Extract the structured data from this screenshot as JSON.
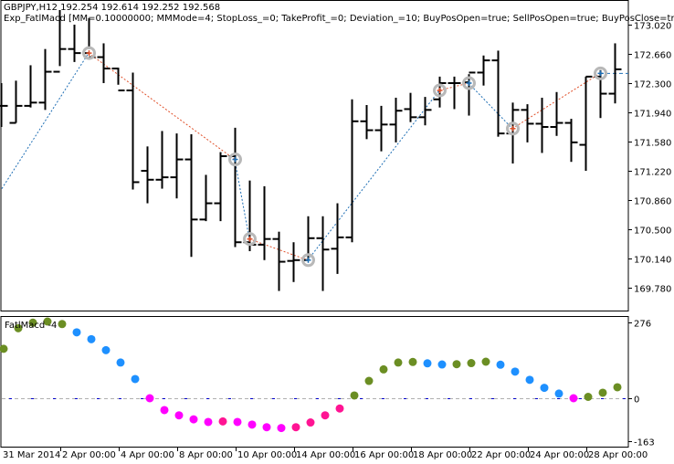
{
  "header": {
    "symbol_line": "GBPJPY,H12  192.254 192.614 192.252 192.568",
    "expert_line": "Exp_FatlMacd [MM=0.10000000; MMMode=4; StopLoss_=0; TakeProfit_=0; Deviation_=10; BuyPosOpen=true; SellPosOpen=true; BuyPosClose=true; SellPosCl"
  },
  "indicator": {
    "label": "FatlMacd -4"
  },
  "colors": {
    "bar": "#000000",
    "buy_line": "#1f6fb5",
    "sell_line": "#e0502a",
    "up_rising": "#6b8e23",
    "up_falling": "#1e90ff",
    "down_falling": "#ff00ff",
    "down_rising": "#ff1493",
    "zero_line": "#b0b0b0",
    "signal_marker": "#b8b8b8"
  },
  "price_axis": {
    "ticks": [
      "173.020",
      "172.660",
      "172.300",
      "171.940",
      "171.580",
      "171.220",
      "170.860",
      "170.500",
      "170.140",
      "169.780"
    ]
  },
  "indicator_axis": {
    "ticks": [
      "276",
      "0",
      "-163"
    ]
  },
  "time_axis": {
    "ticks": [
      "31 Mar 2014",
      "2 Apr 00:00",
      "4 Apr 00:00",
      "8 Apr 00:00",
      "10 Apr 00:00",
      "14 Apr 00:00",
      "16 Apr 00:00",
      "18 Apr 00:00",
      "22 Apr 00:00",
      "24 Apr 00:00",
      "28 Apr 00:00"
    ]
  },
  "chart_data": [
    {
      "type": "ohlc",
      "title": "GBPJPY,H12",
      "ylim": [
        169.6,
        173.1
      ],
      "yticks": [
        173.02,
        172.66,
        172.3,
        171.94,
        171.58,
        171.22,
        170.86,
        170.5,
        170.14,
        169.78
      ],
      "bars": [
        {
          "o": 172.02,
          "h": 172.3,
          "l": 171.76,
          "c": 172.02
        },
        {
          "o": 171.81,
          "h": 172.33,
          "l": 171.81,
          "c": 172.02
        },
        {
          "o": 172.02,
          "h": 172.52,
          "l": 172.0,
          "c": 172.06
        },
        {
          "o": 172.06,
          "h": 172.72,
          "l": 171.97,
          "c": 172.44
        },
        {
          "o": 172.44,
          "h": 173.2,
          "l": 172.51,
          "c": 172.72
        },
        {
          "o": 172.72,
          "h": 173.02,
          "l": 172.56,
          "c": 172.67
        },
        {
          "o": 172.67,
          "h": 173.1,
          "l": 172.72,
          "c": 172.62
        },
        {
          "o": 172.62,
          "h": 172.79,
          "l": 172.3,
          "c": 172.48
        },
        {
          "o": 172.48,
          "h": 172.49,
          "l": 172.28,
          "c": 172.21
        },
        {
          "o": 172.21,
          "h": 172.43,
          "l": 170.99,
          "c": 171.08
        },
        {
          "o": 171.22,
          "h": 171.52,
          "l": 170.82,
          "c": 171.11
        },
        {
          "o": 171.11,
          "h": 171.71,
          "l": 171.0,
          "c": 171.14
        },
        {
          "o": 171.14,
          "h": 171.68,
          "l": 170.88,
          "c": 171.36
        },
        {
          "o": 171.36,
          "h": 171.67,
          "l": 170.16,
          "c": 170.62
        },
        {
          "o": 170.62,
          "h": 171.17,
          "l": 170.6,
          "c": 170.82
        },
        {
          "o": 170.82,
          "h": 171.45,
          "l": 170.6,
          "c": 171.4
        },
        {
          "o": 171.4,
          "h": 171.75,
          "l": 170.28,
          "c": 170.34
        },
        {
          "o": 170.34,
          "h": 171.1,
          "l": 170.23,
          "c": 170.31
        },
        {
          "o": 170.31,
          "h": 171.03,
          "l": 170.12,
          "c": 170.38
        },
        {
          "o": 170.38,
          "h": 170.47,
          "l": 169.74,
          "c": 170.1
        },
        {
          "o": 170.11,
          "h": 170.34,
          "l": 169.85,
          "c": 170.12
        },
        {
          "o": 170.12,
          "h": 170.66,
          "l": 170.12,
          "c": 170.39
        },
        {
          "o": 170.39,
          "h": 170.66,
          "l": 169.74,
          "c": 170.25
        },
        {
          "o": 170.26,
          "h": 170.82,
          "l": 169.95,
          "c": 170.4
        },
        {
          "o": 170.4,
          "h": 172.1,
          "l": 170.34,
          "c": 171.83
        },
        {
          "o": 171.83,
          "h": 172.03,
          "l": 171.61,
          "c": 171.72
        },
        {
          "o": 171.72,
          "h": 172.02,
          "l": 171.46,
          "c": 171.79
        },
        {
          "o": 171.79,
          "h": 172.12,
          "l": 171.57,
          "c": 171.96
        },
        {
          "o": 171.98,
          "h": 172.18,
          "l": 171.82,
          "c": 171.88
        },
        {
          "o": 171.88,
          "h": 172.13,
          "l": 171.78,
          "c": 171.97
        },
        {
          "o": 172.1,
          "h": 172.38,
          "l": 172.0,
          "c": 172.3
        },
        {
          "o": 172.3,
          "h": 172.38,
          "l": 171.98,
          "c": 172.3
        },
        {
          "o": 172.31,
          "h": 172.41,
          "l": 171.9,
          "c": 172.43
        },
        {
          "o": 172.43,
          "h": 172.64,
          "l": 172.27,
          "c": 172.58
        },
        {
          "o": 172.58,
          "h": 172.7,
          "l": 171.64,
          "c": 171.68
        },
        {
          "o": 171.68,
          "h": 172.06,
          "l": 171.31,
          "c": 171.97
        },
        {
          "o": 171.97,
          "h": 172.04,
          "l": 171.57,
          "c": 171.8
        },
        {
          "o": 171.8,
          "h": 172.12,
          "l": 171.44,
          "c": 171.76
        },
        {
          "o": 171.76,
          "h": 172.19,
          "l": 171.65,
          "c": 171.81
        },
        {
          "o": 171.81,
          "h": 171.86,
          "l": 171.33,
          "c": 171.57
        },
        {
          "o": 171.54,
          "h": 172.38,
          "l": 171.22,
          "c": 172.38
        },
        {
          "o": 172.38,
          "h": 172.46,
          "l": 171.87,
          "c": 172.17
        },
        {
          "o": 172.17,
          "h": 172.79,
          "l": 172.05,
          "c": 172.47
        }
      ],
      "signals": [
        {
          "bar": 6,
          "type": "sell",
          "price": 172.67
        },
        {
          "bar": 16,
          "type": "buy",
          "price": 171.36
        },
        {
          "bar": 17,
          "type": "sell",
          "price": 170.38
        },
        {
          "bar": 21,
          "type": "buy",
          "price": 170.12
        },
        {
          "bar": 30,
          "type": "sell",
          "price": 172.21
        },
        {
          "bar": 32,
          "type": "buy",
          "price": 172.3
        },
        {
          "bar": 35,
          "type": "sell",
          "price": 171.74
        },
        {
          "bar": 41,
          "type": "buy",
          "price": 172.42
        }
      ]
    },
    {
      "type": "scatter",
      "title": "FatlMacd -4",
      "ylim": [
        -163,
        276
      ],
      "yticks": [
        276,
        0,
        -163
      ],
      "xlabel": "",
      "ylabel": "",
      "x_tick_labels": [
        "31 Mar 2014",
        "2 Apr 00:00",
        "4 Apr 00:00",
        "8 Apr 00:00",
        "10 Apr 00:00",
        "14 Apr 00:00",
        "16 Apr 00:00",
        "18 Apr 00:00",
        "22 Apr 00:00",
        "24 Apr 00:00",
        "28 Apr 00:00"
      ],
      "points": [
        {
          "v": 180,
          "c": "up_rising"
        },
        {
          "v": 255,
          "c": "up_rising"
        },
        {
          "v": 275,
          "c": "up_rising"
        },
        {
          "v": 290,
          "c": "up_rising"
        },
        {
          "v": 270,
          "c": "up_rising"
        },
        {
          "v": 240,
          "c": "up_falling"
        },
        {
          "v": 215,
          "c": "up_falling"
        },
        {
          "v": 175,
          "c": "up_falling"
        },
        {
          "v": 130,
          "c": "up_falling"
        },
        {
          "v": 70,
          "c": "up_falling"
        },
        {
          "v": 0,
          "c": "down_falling"
        },
        {
          "v": -45,
          "c": "down_falling"
        },
        {
          "v": -65,
          "c": "down_falling"
        },
        {
          "v": -80,
          "c": "down_falling"
        },
        {
          "v": -90,
          "c": "down_falling"
        },
        {
          "v": -88,
          "c": "down_rising"
        },
        {
          "v": -90,
          "c": "down_falling"
        },
        {
          "v": -100,
          "c": "down_falling"
        },
        {
          "v": -110,
          "c": "down_falling"
        },
        {
          "v": -113,
          "c": "down_falling"
        },
        {
          "v": -110,
          "c": "down_rising"
        },
        {
          "v": -92,
          "c": "down_rising"
        },
        {
          "v": -65,
          "c": "down_rising"
        },
        {
          "v": -39,
          "c": "down_rising"
        },
        {
          "v": 10,
          "c": "up_rising"
        },
        {
          "v": 63,
          "c": "up_rising"
        },
        {
          "v": 105,
          "c": "up_rising"
        },
        {
          "v": 130,
          "c": "up_rising"
        },
        {
          "v": 132,
          "c": "up_rising"
        },
        {
          "v": 127,
          "c": "up_falling"
        },
        {
          "v": 123,
          "c": "up_falling"
        },
        {
          "v": 124,
          "c": "up_rising"
        },
        {
          "v": 128,
          "c": "up_rising"
        },
        {
          "v": 133,
          "c": "up_rising"
        },
        {
          "v": 122,
          "c": "up_falling"
        },
        {
          "v": 97,
          "c": "up_falling"
        },
        {
          "v": 67,
          "c": "up_falling"
        },
        {
          "v": 38,
          "c": "up_falling"
        },
        {
          "v": 17,
          "c": "up_falling"
        },
        {
          "v": 0,
          "c": "down_falling"
        },
        {
          "v": 5,
          "c": "up_rising"
        },
        {
          "v": 20,
          "c": "up_rising"
        },
        {
          "v": 40,
          "c": "up_rising"
        }
      ]
    }
  ]
}
